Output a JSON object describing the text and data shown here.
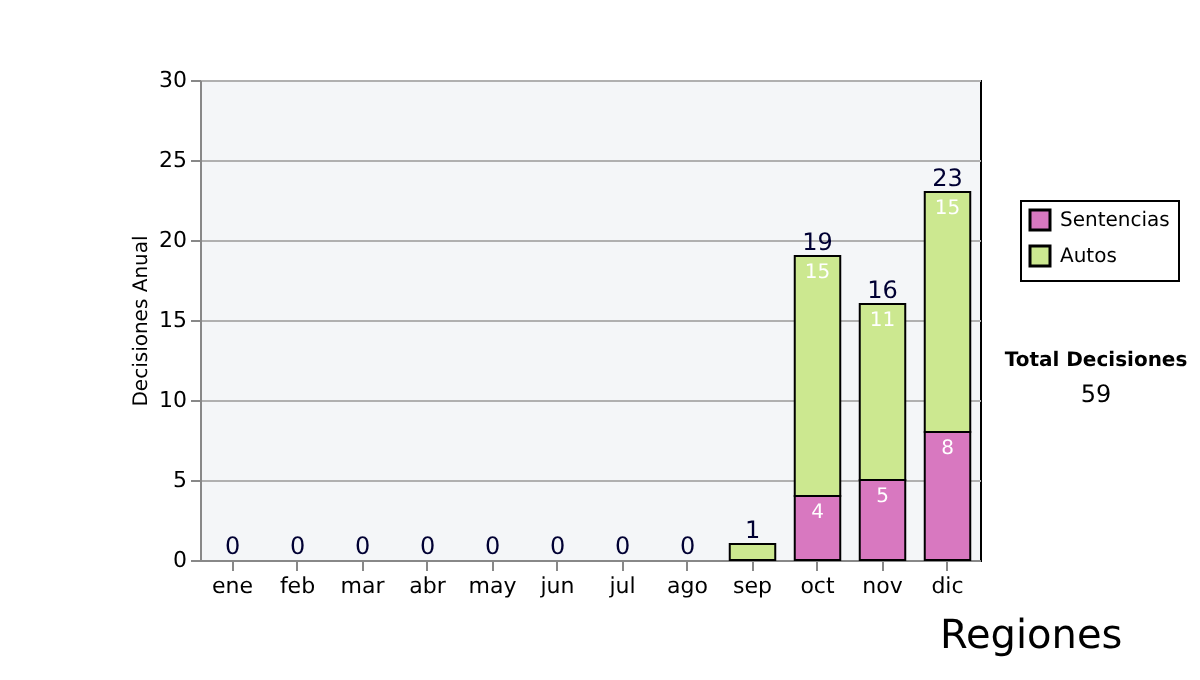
{
  "chart_data": {
    "type": "bar",
    "stacked": true,
    "ylabel": "Decisiones Anual",
    "categories": [
      "ene",
      "feb",
      "mar",
      "abr",
      "may",
      "jun",
      "jul",
      "ago",
      "sep",
      "oct",
      "nov",
      "dic"
    ],
    "series": [
      {
        "name": "Sentencias",
        "color": "#d878c0",
        "values": [
          0,
          0,
          0,
          0,
          0,
          0,
          0,
          0,
          0,
          4,
          5,
          8
        ],
        "value_labels": [
          null,
          null,
          null,
          null,
          null,
          null,
          null,
          null,
          null,
          "4",
          "5",
          "8"
        ]
      },
      {
        "name": "Autos",
        "color": "#cce890",
        "values": [
          0,
          0,
          0,
          0,
          0,
          0,
          0,
          0,
          1,
          15,
          11,
          15
        ],
        "value_labels": [
          null,
          null,
          null,
          null,
          null,
          null,
          null,
          null,
          null,
          "15",
          "11",
          "15"
        ]
      }
    ],
    "totals": [
      "0",
      "0",
      "0",
      "0",
      "0",
      "0",
      "0",
      "0",
      "1",
      "19",
      "16",
      "23"
    ],
    "ylim": [
      0,
      30
    ],
    "yticks": [
      0,
      5,
      10,
      15,
      20,
      25,
      30
    ],
    "grid": "y",
    "legend": "right",
    "annotations": [
      "Total Decisiones",
      "59",
      "Regiones"
    ]
  }
}
